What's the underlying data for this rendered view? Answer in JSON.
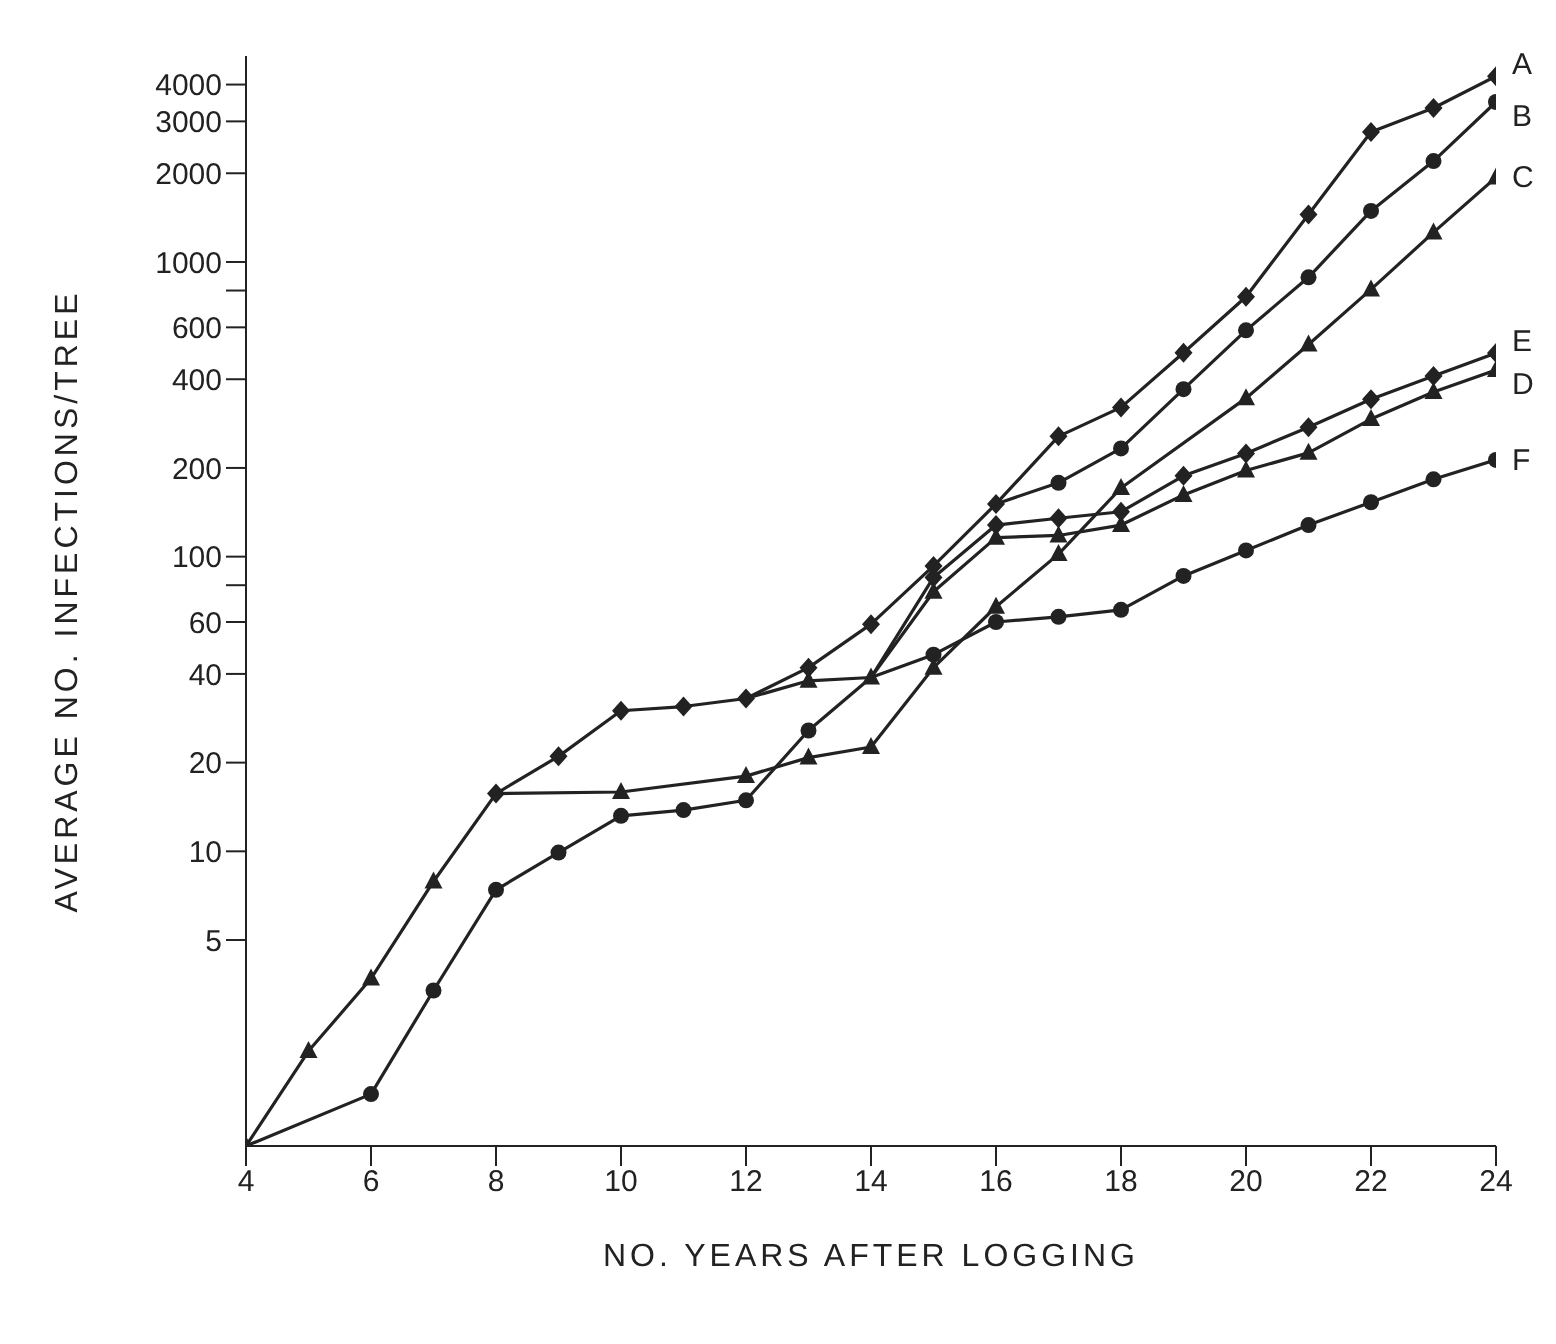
{
  "chart_data": {
    "type": "line",
    "xlabel": "NO. YEARS AFTER LOGGING",
    "ylabel": "AVERAGE NO. INFECTIONS/TREE",
    "log": "y",
    "grid": false,
    "legend": false,
    "line_style": "solid",
    "xlim": [
      4,
      24
    ],
    "xticks": [
      4,
      6,
      8,
      10,
      12,
      14,
      16,
      18,
      20,
      22,
      24
    ],
    "ylim": [
      1,
      5000
    ],
    "yticks": [
      5,
      10,
      20,
      40,
      60,
      {
        "value": 80,
        "label": null
      },
      100,
      200,
      400,
      600,
      {
        "value": 800,
        "label": null
      },
      1000,
      2000,
      3000,
      4000
    ],
    "series": [
      {
        "name": "A",
        "color": "#222222",
        "marker": "diamond",
        "x": [
          8,
          9,
          10,
          11,
          12,
          13,
          14,
          15,
          16,
          17,
          18,
          19,
          20,
          21,
          22,
          23,
          24
        ],
        "values": [
          15.7,
          21,
          30,
          31,
          33,
          42,
          59,
          93,
          151,
          256,
          321,
          492,
          762,
          1450,
          2760,
          3330,
          4270
        ]
      },
      {
        "name": "B",
        "color": "#222222",
        "marker": "circle",
        "x": [
          16,
          17,
          18,
          19,
          20,
          21,
          22,
          23,
          24
        ],
        "values": [
          151,
          178,
          233,
          370,
          586,
          887,
          1490,
          2200,
          3490
        ]
      },
      {
        "name": "C",
        "color": "#222222",
        "marker": "triangle",
        "x": [
          4,
          5,
          6,
          7,
          8,
          10,
          12,
          13,
          14,
          15,
          16,
          17,
          18,
          20,
          21,
          22,
          23,
          24
        ],
        "values": [
          1,
          2.1,
          3.7,
          7.9,
          15.7,
          15.9,
          18,
          20.8,
          22.6,
          42,
          67.6,
          102,
          171,
          345,
          525,
          807,
          1260,
          1935
        ]
      },
      {
        "name": "D",
        "color": "#222222",
        "marker": "triangle",
        "x": [
          12,
          13,
          14,
          15,
          16,
          17,
          18,
          19,
          20,
          21,
          22,
          23,
          24
        ],
        "values": [
          33,
          37.9,
          38.9,
          76,
          116,
          118,
          128,
          162,
          196,
          225,
          293,
          362,
          430
        ]
      },
      {
        "name": "E",
        "color": "#222222",
        "marker": "diamond",
        "x": [
          14,
          15,
          16,
          17,
          18,
          19,
          20,
          21,
          22,
          23,
          24
        ],
        "values": [
          38.9,
          85,
          128,
          135,
          142,
          188,
          224,
          275,
          342,
          410,
          491
        ]
      },
      {
        "name": "F",
        "color": "#222222",
        "marker": "circle",
        "x": [
          4,
          6,
          7,
          8,
          9,
          10,
          11,
          12,
          13,
          14,
          15,
          16,
          17,
          18,
          19,
          20,
          21,
          22,
          23,
          24
        ],
        "values": [
          1,
          1.5,
          3.37,
          7.4,
          9.9,
          13.2,
          13.8,
          14.9,
          25.7,
          38.9,
          46.5,
          60,
          62.5,
          66,
          86,
          105,
          128,
          153,
          183,
          213
        ]
      }
    ]
  }
}
